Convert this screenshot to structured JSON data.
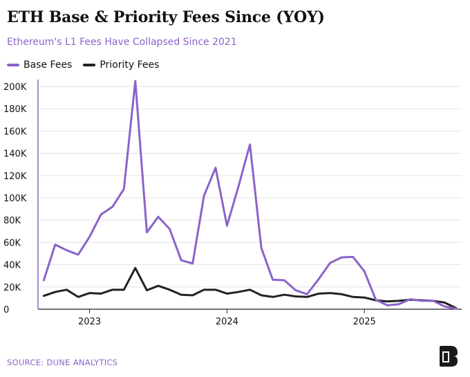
{
  "header": {
    "title": "ETH Base & Priority Fees Since (YOY)",
    "subtitle": "Ethereum's L1 Fees Have Collapsed Since 2021"
  },
  "footer": {
    "source": "SOURCE: DUNE ANALYTICS",
    "logo_icon": "theblock-logo-icon"
  },
  "chart_data": {
    "type": "line",
    "title": "ETH Base & Priority Fees Since (YOY)",
    "subtitle": "Ethereum's L1 Fees Have Collapsed Since 2021",
    "xlabel": "",
    "ylabel": "",
    "ylim": [
      0,
      205000
    ],
    "xlim": [
      2022.625,
      2025.708
    ],
    "grid": true,
    "legend_position": "top-left",
    "yticks": [
      0,
      20000,
      40000,
      60000,
      80000,
      100000,
      120000,
      140000,
      160000,
      180000,
      200000
    ],
    "ytick_labels": [
      "0",
      "20K",
      "40K",
      "60K",
      "80K",
      "100K",
      "120K",
      "140K",
      "160K",
      "180K",
      "200K"
    ],
    "xticks": [
      2023.0,
      2024.0,
      2025.0
    ],
    "xtick_labels": [
      "2023",
      "2024",
      "2025"
    ],
    "x": [
      2022.667,
      2022.75,
      2022.833,
      2022.917,
      2023.0,
      2023.083,
      2023.167,
      2023.25,
      2023.333,
      2023.417,
      2023.5,
      2023.583,
      2023.667,
      2023.75,
      2023.833,
      2023.917,
      2024.0,
      2024.083,
      2024.167,
      2024.25,
      2024.333,
      2024.417,
      2024.5,
      2024.583,
      2024.667,
      2024.75,
      2024.833,
      2024.917,
      2025.0,
      2025.083,
      2025.167,
      2025.25,
      2025.333,
      2025.417,
      2025.5,
      2025.583,
      2025.667
    ],
    "series": [
      {
        "name": "Base Fees",
        "color": "#8a63c9",
        "values": [
          26000,
          58000,
          53000,
          49000,
          65000,
          85000,
          92000,
          108000,
          205000,
          69000,
          83000,
          72000,
          44000,
          41000,
          102000,
          127000,
          75000,
          110000,
          148000,
          55000,
          26500,
          26000,
          17000,
          13500,
          27000,
          41500,
          46500,
          47000,
          34000,
          8500,
          3500,
          4500,
          9000,
          7500,
          7500,
          2500,
          500
        ]
      },
      {
        "name": "Priority Fees",
        "color": "#222222",
        "values": [
          12000,
          15500,
          17500,
          11000,
          14500,
          14000,
          17500,
          17500,
          37000,
          17000,
          21000,
          17500,
          13000,
          12500,
          17500,
          17500,
          14000,
          15500,
          17500,
          12500,
          11000,
          13000,
          11500,
          11000,
          14000,
          14500,
          13500,
          11000,
          10500,
          8000,
          7000,
          7500,
          8500,
          8000,
          7500,
          6000,
          1000
        ]
      }
    ]
  }
}
